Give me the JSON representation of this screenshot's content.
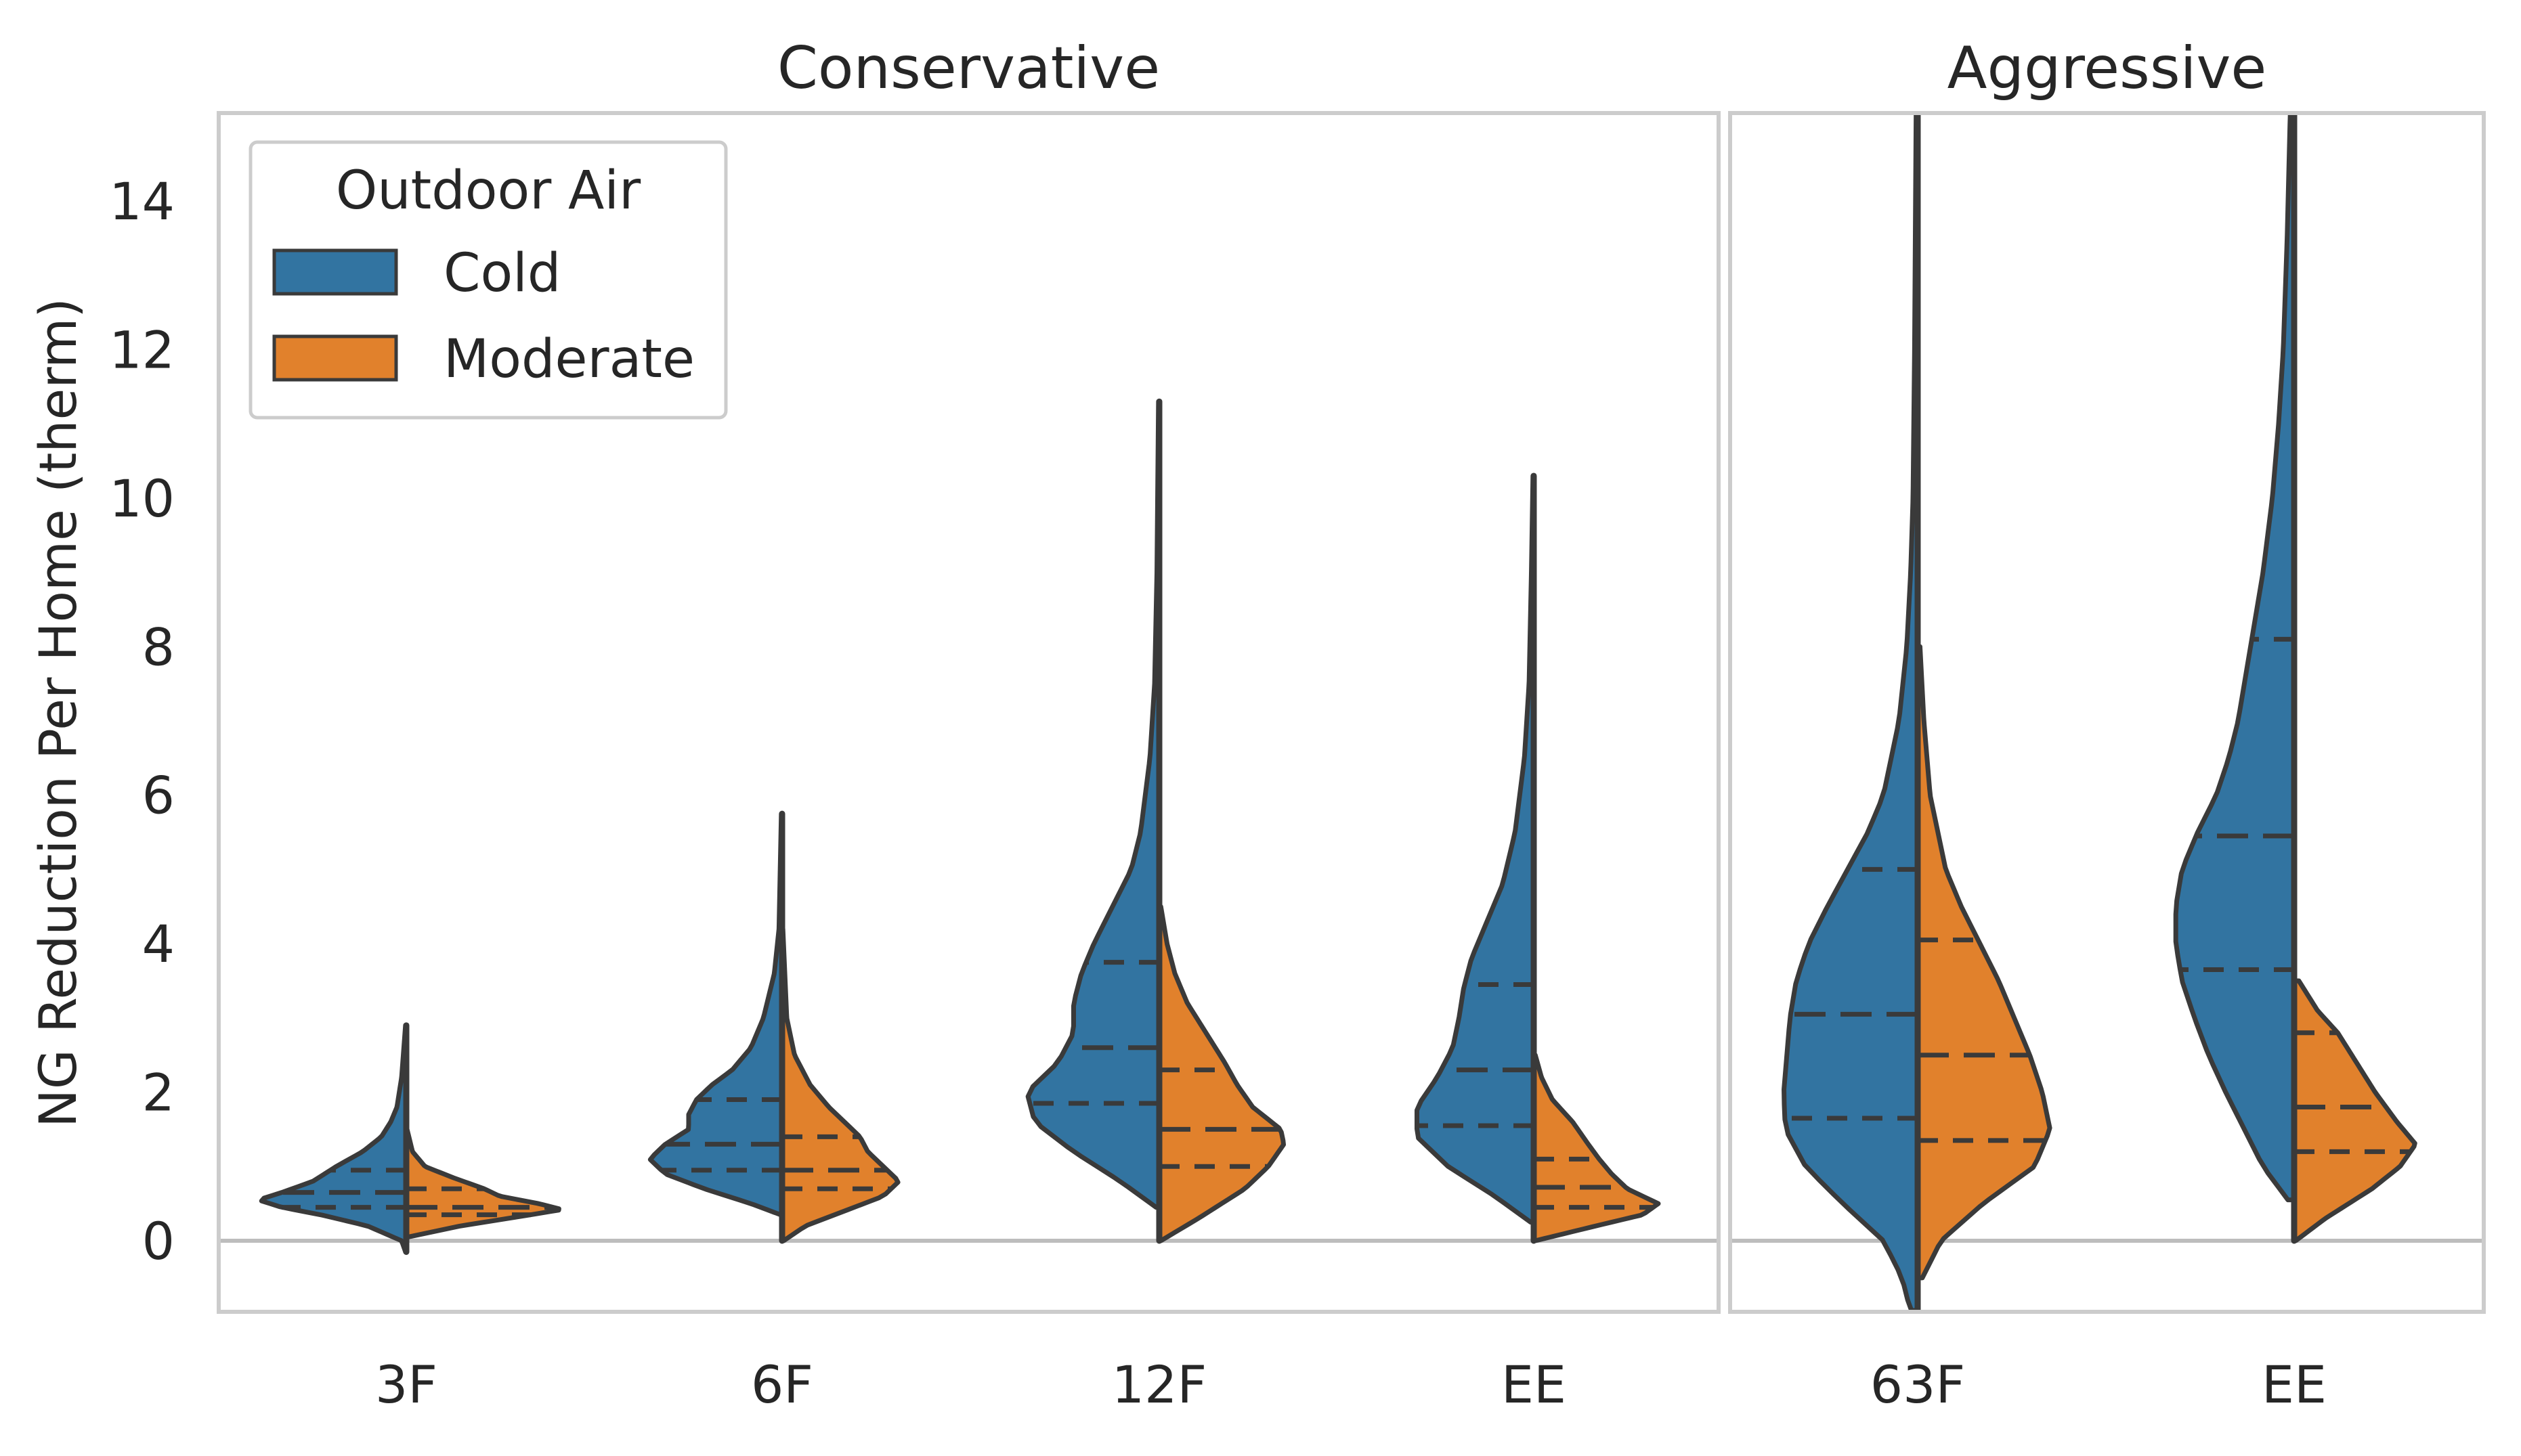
{
  "chart_data": {
    "type": "violin",
    "ylabel": "NG Reduction Per Home (therm)",
    "ylim": [
      -1,
      15.2
    ],
    "yticks": [
      0,
      2,
      4,
      6,
      8,
      10,
      12,
      14
    ],
    "ytick_labels": [
      "0",
      "2",
      "4",
      "6",
      "8",
      "10",
      "12",
      "14"
    ],
    "legend": {
      "title": "Outdoor Air",
      "position": "top-left",
      "entries": [
        {
          "name": "Cold",
          "color": "#3274a1"
        },
        {
          "name": "Moderate",
          "color": "#e1812c"
        }
      ]
    },
    "colors": {
      "cold": "#3274a1",
      "moderate": "#e1812c",
      "outline": "#3a3a3a",
      "frame": "#cccccc",
      "zero_line": "#bdbdbd"
    },
    "panels": [
      {
        "title": "Conservative",
        "categories": [
          {
            "label": "3F",
            "cold": {
              "min": -0.15,
              "max": 2.9,
              "quartiles": [
                0.45,
                0.65,
                0.95
              ],
              "profile": [
                [
                  -0.15,
                  0.005
                ],
                [
                  0.0,
                  0.03
                ],
                [
                  0.2,
                  0.25
                ],
                [
                  0.35,
                  0.55
                ],
                [
                  0.45,
                  0.8
                ],
                [
                  0.55,
                  0.95
                ],
                [
                  0.65,
                  0.8
                ],
                [
                  0.8,
                  0.6
                ],
                [
                  1.0,
                  0.45
                ],
                [
                  1.2,
                  0.28
                ],
                [
                  1.4,
                  0.16
                ],
                [
                  1.6,
                  0.1
                ],
                [
                  1.8,
                  0.06
                ],
                [
                  2.2,
                  0.03
                ],
                [
                  2.9,
                  0.005
                ]
              ]
            },
            "moderate": {
              "min": 0.05,
              "max": 1.5,
              "quartiles": [
                0.35,
                0.45,
                0.7
              ],
              "profile": [
                [
                  0.05,
                  0.01
                ],
                [
                  0.2,
                  0.35
                ],
                [
                  0.35,
                  0.8
                ],
                [
                  0.42,
                  1.0
                ],
                [
                  0.5,
                  0.85
                ],
                [
                  0.6,
                  0.6
                ],
                [
                  0.7,
                  0.5
                ],
                [
                  0.85,
                  0.3
                ],
                [
                  1.0,
                  0.12
                ],
                [
                  1.2,
                  0.04
                ],
                [
                  1.5,
                  0.005
                ]
              ]
            }
          },
          {
            "label": "6F",
            "cold": {
              "min": 0.35,
              "max": 5.75,
              "quartiles": [
                0.95,
                1.3,
                1.9
              ],
              "profile": [
                [
                  0.35,
                  0.01
                ],
                [
                  0.5,
                  0.2
                ],
                [
                  0.7,
                  0.5
                ],
                [
                  0.9,
                  0.75
                ],
                [
                  1.1,
                  0.85
                ],
                [
                  1.3,
                  0.75
                ],
                [
                  1.5,
                  0.6
                ],
                [
                  1.7,
                  0.6
                ],
                [
                  1.9,
                  0.55
                ],
                [
                  2.1,
                  0.45
                ],
                [
                  2.3,
                  0.32
                ],
                [
                  2.6,
                  0.2
                ],
                [
                  3.0,
                  0.12
                ],
                [
                  3.6,
                  0.05
                ],
                [
                  4.2,
                  0.02
                ],
                [
                  5.75,
                  0.005
                ]
              ]
            },
            "moderate": {
              "min": 0.0,
              "max": 4.2,
              "quartiles": [
                0.7,
                0.95,
                1.4
              ],
              "profile": [
                [
                  0.0,
                  0.01
                ],
                [
                  0.2,
                  0.15
                ],
                [
                  0.4,
                  0.4
                ],
                [
                  0.6,
                  0.65
                ],
                [
                  0.8,
                  0.75
                ],
                [
                  1.0,
                  0.65
                ],
                [
                  1.2,
                  0.55
                ],
                [
                  1.4,
                  0.5
                ],
                [
                  1.6,
                  0.4
                ],
                [
                  1.8,
                  0.3
                ],
                [
                  2.1,
                  0.18
                ],
                [
                  2.5,
                  0.08
                ],
                [
                  3.0,
                  0.03
                ],
                [
                  4.2,
                  0.005
                ]
              ]
            }
          },
          {
            "label": "12F",
            "cold": {
              "min": 0.45,
              "max": 11.3,
              "quartiles": [
                1.85,
                2.6,
                3.75
              ],
              "profile": [
                [
                  0.45,
                  0.02
                ],
                [
                  0.8,
                  0.25
                ],
                [
                  1.2,
                  0.55
                ],
                [
                  1.6,
                  0.8
                ],
                [
                  2.0,
                  0.85
                ],
                [
                  2.4,
                  0.65
                ],
                [
                  2.8,
                  0.55
                ],
                [
                  3.2,
                  0.55
                ],
                [
                  3.6,
                  0.5
                ],
                [
                  4.0,
                  0.42
                ],
                [
                  4.5,
                  0.3
                ],
                [
                  5.0,
                  0.18
                ],
                [
                  5.5,
                  0.12
                ],
                [
                  6.5,
                  0.06
                ],
                [
                  7.5,
                  0.03
                ],
                [
                  9.0,
                  0.015
                ],
                [
                  11.3,
                  0.005
                ]
              ]
            },
            "moderate": {
              "min": 0.0,
              "max": 4.5,
              "quartiles": [
                1.0,
                1.5,
                2.3
              ],
              "profile": [
                [
                  0.0,
                  0.01
                ],
                [
                  0.3,
                  0.25
                ],
                [
                  0.7,
                  0.55
                ],
                [
                  1.0,
                  0.7
                ],
                [
                  1.3,
                  0.8
                ],
                [
                  1.5,
                  0.78
                ],
                [
                  1.8,
                  0.6
                ],
                [
                  2.1,
                  0.5
                ],
                [
                  2.4,
                  0.42
                ],
                [
                  2.8,
                  0.3
                ],
                [
                  3.2,
                  0.18
                ],
                [
                  3.6,
                  0.1
                ],
                [
                  4.0,
                  0.05
                ],
                [
                  4.5,
                  0.01
                ]
              ]
            }
          },
          {
            "label": "EE",
            "cold": {
              "min": 0.25,
              "max": 10.3,
              "quartiles": [
                1.55,
                2.3,
                3.45
              ],
              "profile": [
                [
                  0.25,
                  0.02
                ],
                [
                  0.6,
                  0.25
                ],
                [
                  1.0,
                  0.55
                ],
                [
                  1.4,
                  0.75
                ],
                [
                  1.8,
                  0.75
                ],
                [
                  2.2,
                  0.62
                ],
                [
                  2.6,
                  0.52
                ],
                [
                  3.0,
                  0.48
                ],
                [
                  3.4,
                  0.45
                ],
                [
                  3.8,
                  0.4
                ],
                [
                  4.3,
                  0.3
                ],
                [
                  4.8,
                  0.2
                ],
                [
                  5.5,
                  0.12
                ],
                [
                  6.5,
                  0.06
                ],
                [
                  7.5,
                  0.03
                ],
                [
                  9.0,
                  0.015
                ],
                [
                  10.3,
                  0.005
                ]
              ]
            },
            "moderate": {
              "min": 0.0,
              "max": 2.5,
              "quartiles": [
                0.45,
                0.72,
                1.1
              ],
              "profile": [
                [
                  0.0,
                  0.01
                ],
                [
                  0.2,
                  0.4
                ],
                [
                  0.35,
                  0.7
                ],
                [
                  0.5,
                  0.8
                ],
                [
                  0.7,
                  0.6
                ],
                [
                  0.9,
                  0.5
                ],
                [
                  1.1,
                  0.42
                ],
                [
                  1.3,
                  0.35
                ],
                [
                  1.6,
                  0.25
                ],
                [
                  1.9,
                  0.12
                ],
                [
                  2.2,
                  0.05
                ],
                [
                  2.5,
                  0.01
                ]
              ]
            }
          }
        ]
      },
      {
        "title": "Aggressive",
        "categories": [
          {
            "label": "63F",
            "cold": {
              "min": -1.0,
              "max": 15.2,
              "quartiles": [
                1.65,
                3.05,
                5.0
              ],
              "profile": [
                [
                  -1.0,
                  0.04
                ],
                [
                  -0.5,
                  0.1
                ],
                [
                  0.0,
                  0.22
                ],
                [
                  0.5,
                  0.48
                ],
                [
                  1.0,
                  0.72
                ],
                [
                  1.5,
                  0.85
                ],
                [
                  2.0,
                  0.86
                ],
                [
                  2.5,
                  0.84
                ],
                [
                  3.0,
                  0.82
                ],
                [
                  3.5,
                  0.78
                ],
                [
                  4.0,
                  0.7
                ],
                [
                  4.5,
                  0.58
                ],
                [
                  5.0,
                  0.45
                ],
                [
                  5.5,
                  0.32
                ],
                [
                  6.0,
                  0.22
                ],
                [
                  7.0,
                  0.12
                ],
                [
                  8.0,
                  0.07
                ],
                [
                  9.0,
                  0.045
                ],
                [
                  10.0,
                  0.03
                ],
                [
                  12.0,
                  0.02
                ],
                [
                  15.2,
                  0.01
                ]
              ]
            },
            "moderate": {
              "min": -0.5,
              "max": 8.0,
              "quartiles": [
                1.35,
                2.5,
                4.05
              ],
              "profile": [
                [
                  -0.5,
                  0.03
                ],
                [
                  0.0,
                  0.15
                ],
                [
                  0.5,
                  0.42
                ],
                [
                  1.0,
                  0.75
                ],
                [
                  1.5,
                  0.85
                ],
                [
                  2.0,
                  0.8
                ],
                [
                  2.5,
                  0.72
                ],
                [
                  3.0,
                  0.62
                ],
                [
                  3.5,
                  0.52
                ],
                [
                  4.0,
                  0.4
                ],
                [
                  4.5,
                  0.28
                ],
                [
                  5.0,
                  0.18
                ],
                [
                  6.0,
                  0.08
                ],
                [
                  7.0,
                  0.04
                ],
                [
                  8.0,
                  0.015
                ]
              ]
            }
          },
          {
            "label": "EE",
            "cold": {
              "min": 0.55,
              "max": 15.2,
              "quartiles": [
                3.65,
                5.45,
                8.1
              ],
              "profile": [
                [
                  0.55,
                  0.04
                ],
                [
                  1.0,
                  0.2
                ],
                [
                  1.5,
                  0.32
                ],
                [
                  2.0,
                  0.44
                ],
                [
                  2.5,
                  0.55
                ],
                [
                  3.0,
                  0.64
                ],
                [
                  3.5,
                  0.72
                ],
                [
                  4.0,
                  0.76
                ],
                [
                  4.5,
                  0.76
                ],
                [
                  5.0,
                  0.72
                ],
                [
                  5.5,
                  0.62
                ],
                [
                  6.0,
                  0.5
                ],
                [
                  6.5,
                  0.42
                ],
                [
                  7.0,
                  0.36
                ],
                [
                  8.0,
                  0.28
                ],
                [
                  9.0,
                  0.2
                ],
                [
                  10.0,
                  0.14
                ],
                [
                  11.0,
                  0.1
                ],
                [
                  12.0,
                  0.07
                ],
                [
                  13.5,
                  0.045
                ],
                [
                  15.2,
                  0.025
                ]
              ]
            },
            "moderate": {
              "min": 0.0,
              "max": 3.5,
              "quartiles": [
                1.2,
                1.8,
                2.8
              ],
              "profile": [
                [
                  0.0,
                  0.01
                ],
                [
                  0.3,
                  0.2
                ],
                [
                  0.7,
                  0.5
                ],
                [
                  1.0,
                  0.68
                ],
                [
                  1.3,
                  0.78
                ],
                [
                  1.6,
                  0.66
                ],
                [
                  2.0,
                  0.52
                ],
                [
                  2.4,
                  0.4
                ],
                [
                  2.8,
                  0.28
                ],
                [
                  3.1,
                  0.15
                ],
                [
                  3.5,
                  0.03
                ]
              ]
            }
          }
        ]
      }
    ]
  }
}
